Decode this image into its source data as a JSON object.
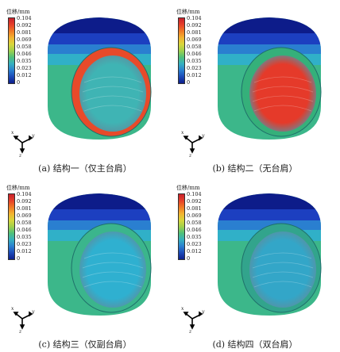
{
  "legend": {
    "title": "位移/mm",
    "ticks": [
      "0.104",
      "0.092",
      "0.081",
      "0.069",
      "0.058",
      "0.046",
      "0.035",
      "0.023",
      "0.012",
      "0"
    ]
  },
  "axes": {
    "x": "x",
    "y": "y",
    "z": "z"
  },
  "panels": [
    {
      "caption": "(a) 结构一（仅主台肩）",
      "interior": "#3fb4b4",
      "ring": "#e84a2a"
    },
    {
      "caption": "(b) 结构二（无台肩）",
      "interior": "#e53a2a",
      "ring": "#35b07a"
    },
    {
      "caption": "(c) 结构三（仅副台肩）",
      "interior": "#2fb0d0",
      "ring": "#3bb58c"
    },
    {
      "caption": "(d) 结构四（双台肩）",
      "interior": "#33a6c8",
      "ring": "#32a48c"
    }
  ],
  "colors": {
    "band_top": "#0d1c8a",
    "band_2": "#1c3fc0",
    "band_3": "#2a7fd0",
    "band_4": "#30b0c8",
    "body": "#3cb78a"
  }
}
